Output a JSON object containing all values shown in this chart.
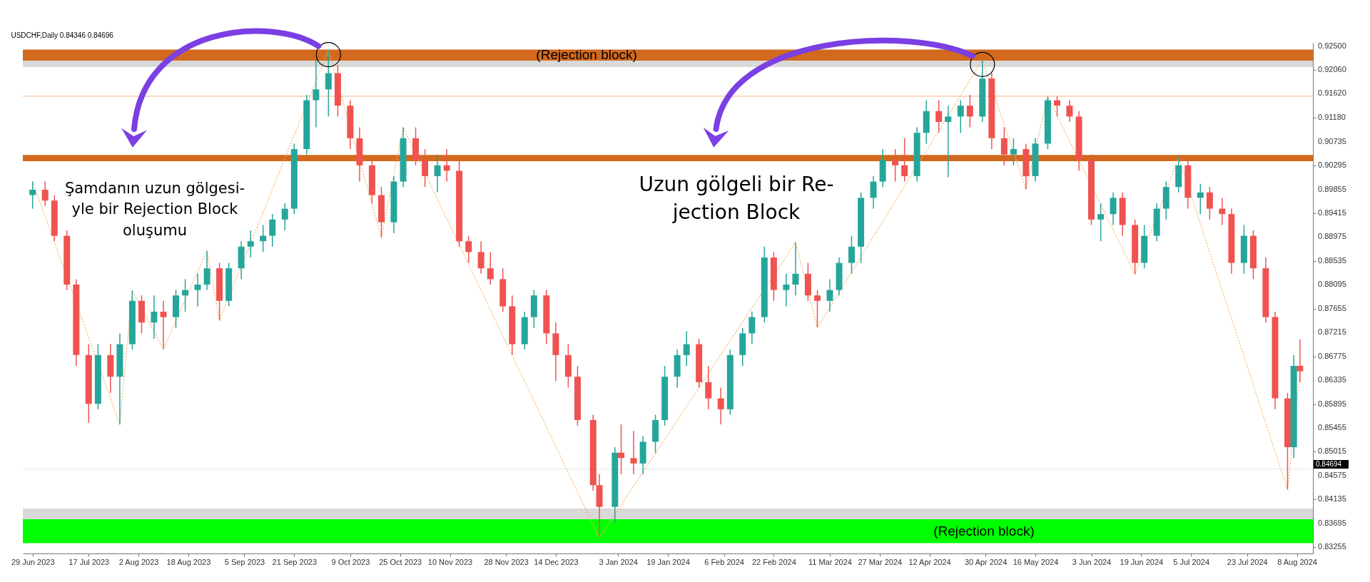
{
  "chart_data": {
    "type": "candlestick",
    "title": "USDCHF,Daily 0.84346 0.84696",
    "x": [
      "2023-06-29",
      "2023-07-03",
      "2023-07-06",
      "2023-07-10",
      "2023-07-13",
      "2023-07-17",
      "2023-07-20",
      "2023-07-24",
      "2023-07-27",
      "2023-07-31",
      "2023-08-03",
      "2023-08-07",
      "2023-08-10",
      "2023-08-14",
      "2023-08-17",
      "2023-08-21",
      "2023-08-24",
      "2023-08-28",
      "2023-08-31",
      "2023-09-04",
      "2023-09-07",
      "2023-09-11",
      "2023-09-14",
      "2023-09-18",
      "2023-09-21",
      "2023-09-25",
      "2023-09-28",
      "2023-10-02",
      "2023-10-05",
      "2023-10-09",
      "2023-10-12",
      "2023-10-16",
      "2023-10-19",
      "2023-10-23",
      "2023-10-26",
      "2023-10-30",
      "2023-11-02",
      "2023-11-06",
      "2023-11-09",
      "2023-11-13",
      "2023-11-16",
      "2023-11-20",
      "2023-11-23",
      "2023-11-27",
      "2023-11-30",
      "2023-12-04",
      "2023-12-07",
      "2023-12-11",
      "2023-12-14",
      "2023-12-18",
      "2023-12-21",
      "2023-12-26",
      "2023-12-28",
      "2024-01-02",
      "2024-01-04",
      "2024-01-08",
      "2024-01-11",
      "2024-01-15",
      "2024-01-18",
      "2024-01-22",
      "2024-01-25",
      "2024-01-29",
      "2024-02-01",
      "2024-02-05",
      "2024-02-08",
      "2024-02-12",
      "2024-02-15",
      "2024-02-19",
      "2024-02-22",
      "2024-02-26",
      "2024-02-29",
      "2024-03-04",
      "2024-03-07",
      "2024-03-11",
      "2024-03-14",
      "2024-03-18",
      "2024-03-21",
      "2024-03-25",
      "2024-03-28",
      "2024-04-01",
      "2024-04-04",
      "2024-04-08",
      "2024-04-11",
      "2024-04-15",
      "2024-04-18",
      "2024-04-22",
      "2024-04-25",
      "2024-04-29",
      "2024-05-02",
      "2024-05-06",
      "2024-05-09",
      "2024-05-13",
      "2024-05-16",
      "2024-05-20",
      "2024-05-23",
      "2024-05-27",
      "2024-05-30",
      "2024-06-03",
      "2024-06-06",
      "2024-06-10",
      "2024-06-13",
      "2024-06-17",
      "2024-06-20",
      "2024-06-24",
      "2024-06-27",
      "2024-07-01",
      "2024-07-04",
      "2024-07-08",
      "2024-07-11",
      "2024-07-15",
      "2024-07-18",
      "2024-07-22",
      "2024-07-25",
      "2024-07-29",
      "2024-08-01",
      "2024-08-05",
      "2024-08-07",
      "2024-08-09"
    ],
    "ohlc": [
      [
        0.8975,
        0.9,
        0.895,
        0.8985
      ],
      [
        0.8985,
        0.9,
        0.8955,
        0.8965
      ],
      [
        0.8965,
        0.8975,
        0.889,
        0.89
      ],
      [
        0.89,
        0.891,
        0.88,
        0.881
      ],
      [
        0.881,
        0.882,
        0.866,
        0.868
      ],
      [
        0.868,
        0.87,
        0.8555,
        0.859
      ],
      [
        0.859,
        0.87,
        0.858,
        0.868
      ],
      [
        0.868,
        0.87,
        0.861,
        0.864
      ],
      [
        0.864,
        0.872,
        0.8552,
        0.87
      ],
      [
        0.87,
        0.8799,
        0.869,
        0.878
      ],
      [
        0.878,
        0.879,
        0.872,
        0.874
      ],
      [
        0.874,
        0.879,
        0.871,
        0.876
      ],
      [
        0.876,
        0.878,
        0.8691,
        0.875
      ],
      [
        0.875,
        0.88,
        0.873,
        0.879
      ],
      [
        0.879,
        0.882,
        0.876,
        0.88
      ],
      [
        0.88,
        0.883,
        0.877,
        0.881
      ],
      [
        0.881,
        0.8872,
        0.88,
        0.884
      ],
      [
        0.884,
        0.885,
        0.8744,
        0.878
      ],
      [
        0.878,
        0.885,
        0.877,
        0.884
      ],
      [
        0.884,
        0.889,
        0.882,
        0.888
      ],
      [
        0.888,
        0.891,
        0.886,
        0.889
      ],
      [
        0.889,
        0.892,
        0.887,
        0.89
      ],
      [
        0.89,
        0.894,
        0.888,
        0.893
      ],
      [
        0.893,
        0.896,
        0.891,
        0.895
      ],
      [
        0.895,
        0.907,
        0.894,
        0.906
      ],
      [
        0.906,
        0.916,
        0.905,
        0.915
      ],
      [
        0.915,
        0.9225,
        0.91,
        0.917
      ],
      [
        0.917,
        0.9242,
        0.912,
        0.92
      ],
      [
        0.92,
        0.9215,
        0.912,
        0.914
      ],
      [
        0.914,
        0.915,
        0.906,
        0.908
      ],
      [
        0.908,
        0.91,
        0.9,
        0.903
      ],
      [
        0.903,
        0.904,
        0.896,
        0.8975
      ],
      [
        0.8975,
        0.899,
        0.8897,
        0.8925
      ],
      [
        0.8925,
        0.901,
        0.8905,
        0.9
      ],
      [
        0.9,
        0.91,
        0.899,
        0.908
      ],
      [
        0.908,
        0.91,
        0.903,
        0.904
      ],
      [
        0.904,
        0.906,
        0.899,
        0.901
      ],
      [
        0.901,
        0.905,
        0.898,
        0.903
      ],
      [
        0.903,
        0.906,
        0.9,
        0.902
      ],
      [
        0.902,
        0.904,
        0.888,
        0.889
      ],
      [
        0.889,
        0.89,
        0.885,
        0.887
      ],
      [
        0.887,
        0.889,
        0.883,
        0.884
      ],
      [
        0.884,
        0.887,
        0.881,
        0.882
      ],
      [
        0.882,
        0.884,
        0.876,
        0.877
      ],
      [
        0.877,
        0.879,
        0.8681,
        0.87
      ],
      [
        0.87,
        0.876,
        0.869,
        0.875
      ],
      [
        0.875,
        0.88,
        0.873,
        0.879
      ],
      [
        0.879,
        0.88,
        0.87,
        0.872
      ],
      [
        0.872,
        0.874,
        0.8632,
        0.868
      ],
      [
        0.868,
        0.87,
        0.862,
        0.864
      ],
      [
        0.864,
        0.866,
        0.855,
        0.856
      ],
      [
        0.856,
        0.857,
        0.843,
        0.844
      ],
      [
        0.844,
        0.846,
        0.8343,
        0.84
      ],
      [
        0.84,
        0.851,
        0.837,
        0.85
      ],
      [
        0.85,
        0.8552,
        0.846,
        0.849
      ],
      [
        0.849,
        0.854,
        0.846,
        0.848
      ],
      [
        0.848,
        0.853,
        0.846,
        0.852
      ],
      [
        0.852,
        0.857,
        0.85,
        0.856
      ],
      [
        0.856,
        0.866,
        0.855,
        0.864
      ],
      [
        0.864,
        0.869,
        0.862,
        0.868
      ],
      [
        0.868,
        0.8724,
        0.866,
        0.87
      ],
      [
        0.87,
        0.871,
        0.862,
        0.863
      ],
      [
        0.863,
        0.866,
        0.858,
        0.86
      ],
      [
        0.86,
        0.862,
        0.8552,
        0.858
      ],
      [
        0.858,
        0.869,
        0.857,
        0.868
      ],
      [
        0.868,
        0.873,
        0.866,
        0.872
      ],
      [
        0.872,
        0.876,
        0.87,
        0.875
      ],
      [
        0.875,
        0.888,
        0.874,
        0.886
      ],
      [
        0.886,
        0.887,
        0.878,
        0.88
      ],
      [
        0.88,
        0.883,
        0.877,
        0.881
      ],
      [
        0.881,
        0.8888,
        0.879,
        0.883
      ],
      [
        0.883,
        0.885,
        0.878,
        0.879
      ],
      [
        0.879,
        0.88,
        0.8731,
        0.878
      ],
      [
        0.878,
        0.882,
        0.876,
        0.88
      ],
      [
        0.88,
        0.886,
        0.879,
        0.885
      ],
      [
        0.885,
        0.89,
        0.883,
        0.888
      ],
      [
        0.888,
        0.898,
        0.885,
        0.897
      ],
      [
        0.897,
        0.901,
        0.895,
        0.9
      ],
      [
        0.9,
        0.906,
        0.899,
        0.904
      ],
      [
        0.904,
        0.906,
        0.9,
        0.903
      ],
      [
        0.903,
        0.908,
        0.9,
        0.901
      ],
      [
        0.901,
        0.91,
        0.9,
        0.909
      ],
      [
        0.909,
        0.915,
        0.907,
        0.913
      ],
      [
        0.913,
        0.915,
        0.909,
        0.911
      ],
      [
        0.911,
        0.914,
        0.9008,
        0.912
      ],
      [
        0.912,
        0.915,
        0.909,
        0.914
      ],
      [
        0.914,
        0.916,
        0.91,
        0.912
      ],
      [
        0.912,
        0.9224,
        0.911,
        0.919
      ],
      [
        0.919,
        0.92,
        0.906,
        0.908
      ],
      [
        0.908,
        0.91,
        0.903,
        0.905
      ],
      [
        0.905,
        0.908,
        0.903,
        0.906
      ],
      [
        0.906,
        0.907,
        0.8986,
        0.901
      ],
      [
        0.901,
        0.908,
        0.9,
        0.907
      ],
      [
        0.907,
        0.9157,
        0.906,
        0.915
      ],
      [
        0.915,
        0.9157,
        0.912,
        0.914
      ],
      [
        0.914,
        0.915,
        0.911,
        0.912
      ],
      [
        0.912,
        0.913,
        0.902,
        0.904
      ],
      [
        0.904,
        0.905,
        0.892,
        0.893
      ],
      [
        0.893,
        0.896,
        0.889,
        0.894
      ],
      [
        0.894,
        0.898,
        0.892,
        0.897
      ],
      [
        0.897,
        0.898,
        0.89,
        0.892
      ],
      [
        0.892,
        0.893,
        0.8829,
        0.885
      ],
      [
        0.885,
        0.892,
        0.884,
        0.89
      ],
      [
        0.89,
        0.896,
        0.889,
        0.895
      ],
      [
        0.895,
        0.9,
        0.893,
        0.899
      ],
      [
        0.899,
        0.9045,
        0.898,
        0.903
      ],
      [
        0.903,
        0.904,
        0.895,
        0.897
      ],
      [
        0.897,
        0.8996,
        0.894,
        0.898
      ],
      [
        0.898,
        0.899,
        0.893,
        0.895
      ],
      [
        0.895,
        0.897,
        0.892,
        0.894
      ],
      [
        0.894,
        0.895,
        0.883,
        0.885
      ],
      [
        0.885,
        0.892,
        0.883,
        0.89
      ],
      [
        0.89,
        0.891,
        0.882,
        0.884
      ],
      [
        0.884,
        0.886,
        0.874,
        0.875
      ],
      [
        0.875,
        0.876,
        0.858,
        0.86
      ],
      [
        0.86,
        0.861,
        0.8432,
        0.851
      ],
      [
        0.851,
        0.868,
        0.849,
        0.866
      ],
      [
        0.866,
        0.8709,
        0.863,
        0.865
      ]
    ],
    "series": [
      {
        "type": "line",
        "color": "#f7b267",
        "line_style": "dotted",
        "x": [
          "2023-06-29",
          "2023-07-27",
          "2023-07-31",
          "2023-08-10",
          "2023-08-24",
          "2023-08-28",
          "2023-10-02",
          "2023-10-19",
          "2023-10-26",
          "2023-12-28",
          "2024-02-29",
          "2024-03-07",
          "2024-04-29",
          "2024-05-13",
          "2024-05-20",
          "2024-06-17",
          "2024-07-01",
          "2024-08-05",
          "2024-08-09"
        ],
        "values": [
          0.9,
          0.8552,
          0.8799,
          0.8691,
          0.8872,
          0.8744,
          0.9242,
          0.8897,
          0.91,
          0.8343,
          0.8888,
          0.8731,
          0.9224,
          0.8986,
          0.9157,
          0.8829,
          0.9045,
          0.8432,
          0.865
        ]
      }
    ],
    "xlim": [
      "2023-06-27",
      "2024-08-12"
    ],
    "xticks": [
      {
        "value": "2023-06-29",
        "label": "29 Jun 2023"
      },
      {
        "value": "2023-07-17",
        "label": "17 Jul 2023"
      },
      {
        "value": "2023-08-02",
        "label": "2 Aug 2023"
      },
      {
        "value": "2023-08-18",
        "label": "18 Aug 2023"
      },
      {
        "value": "2023-09-05",
        "label": "5 Sep 2023"
      },
      {
        "value": "2023-09-21",
        "label": "21 Sep 2023"
      },
      {
        "value": "2023-10-09",
        "label": "9 Oct 2023"
      },
      {
        "value": "2023-10-25",
        "label": "25 Oct 2023"
      },
      {
        "value": "2023-11-10",
        "label": "10 Nov 2023"
      },
      {
        "value": "2023-11-28",
        "label": "28 Nov 2023"
      },
      {
        "value": "2023-12-14",
        "label": "14 Dec 2023"
      },
      {
        "value": "2024-01-03",
        "label": "3 Jan 2024"
      },
      {
        "value": "2024-01-19",
        "label": "19 Jan 2024"
      },
      {
        "value": "2024-02-06",
        "label": "6 Feb 2024"
      },
      {
        "value": "2024-02-22",
        "label": "22 Feb 2024"
      },
      {
        "value": "2024-03-11",
        "label": "11 Mar 2024"
      },
      {
        "value": "2024-03-27",
        "label": "27 Mar 2024"
      },
      {
        "value": "2024-04-12",
        "label": "12 Apr 2024"
      },
      {
        "value": "2024-04-30",
        "label": "30 Apr 2024"
      },
      {
        "value": "2024-05-16",
        "label": "16 May 2024"
      },
      {
        "value": "2024-06-03",
        "label": "3 Jun 2024"
      },
      {
        "value": "2024-06-19",
        "label": "19 Jun 2024"
      },
      {
        "value": "2024-07-05",
        "label": "5 Jul 2024"
      },
      {
        "value": "2024-07-23",
        "label": "23 Jul 2024"
      },
      {
        "value": "2024-08-08",
        "label": "8 Aug 2024"
      }
    ],
    "ylim": [
      0.8314,
      0.9256
    ],
    "yticks": [
      {
        "value": 0.925,
        "label": "0.92500"
      },
      {
        "value": 0.9206,
        "label": "0.92060"
      },
      {
        "value": 0.9162,
        "label": "0.91620"
      },
      {
        "value": 0.9118,
        "label": "0.91180"
      },
      {
        "value": 0.90735,
        "label": "0.90735"
      },
      {
        "value": 0.90295,
        "label": "0.90295"
      },
      {
        "value": 0.89855,
        "label": "0.89855"
      },
      {
        "value": 0.89415,
        "label": "0.89415"
      },
      {
        "value": 0.88975,
        "label": "0.88975"
      },
      {
        "value": 0.88535,
        "label": "0.88535"
      },
      {
        "value": 0.88095,
        "label": "0.88095"
      },
      {
        "value": 0.87655,
        "label": "0.87655"
      },
      {
        "value": 0.87215,
        "label": "0.87215"
      },
      {
        "value": 0.86775,
        "label": "0.86775"
      },
      {
        "value": 0.86335,
        "label": "0.86335"
      },
      {
        "value": 0.85895,
        "label": "0.85895"
      },
      {
        "value": 0.85455,
        "label": "0.85455"
      },
      {
        "value": 0.85015,
        "label": "0.85015"
      },
      {
        "value": 0.84575,
        "label": "0.84575"
      },
      {
        "value": 0.84135,
        "label": "0.84135"
      },
      {
        "value": 0.83695,
        "label": "0.83695"
      },
      {
        "value": 0.83255,
        "label": "0.83255"
      }
    ],
    "bands": [
      {
        "axis": "y",
        "from": 0.92232,
        "to": 0.92435,
        "color": "#d2691e",
        "label": "(Rejection block)"
      },
      {
        "axis": "y",
        "from": 0.92114,
        "to": 0.92232,
        "color": "#d9d9d9"
      },
      {
        "axis": "y",
        "from": 0.90375,
        "to": 0.90491,
        "color": "#d2691e"
      },
      {
        "axis": "y",
        "from": 0.8377,
        "to": 0.8397,
        "color": "#d9d9d9"
      },
      {
        "axis": "y",
        "from": 0.8333,
        "to": 0.8377,
        "color": "#00ff00",
        "label": "(Rejection block)"
      }
    ],
    "ref_lines": [
      {
        "axis": "y",
        "value": 0.91575,
        "color": "#f4b183"
      },
      {
        "axis": "y",
        "value": 0.84694,
        "label": "0.84694",
        "color": "#e6e6e6"
      }
    ],
    "annotations": [
      "Şamdanın uzun gölgesi-\nyle bir Rejection Block\noluşumu",
      "Uzun gölgeli bir Re-\njection Block"
    ],
    "grid": false,
    "legend": false
  }
}
